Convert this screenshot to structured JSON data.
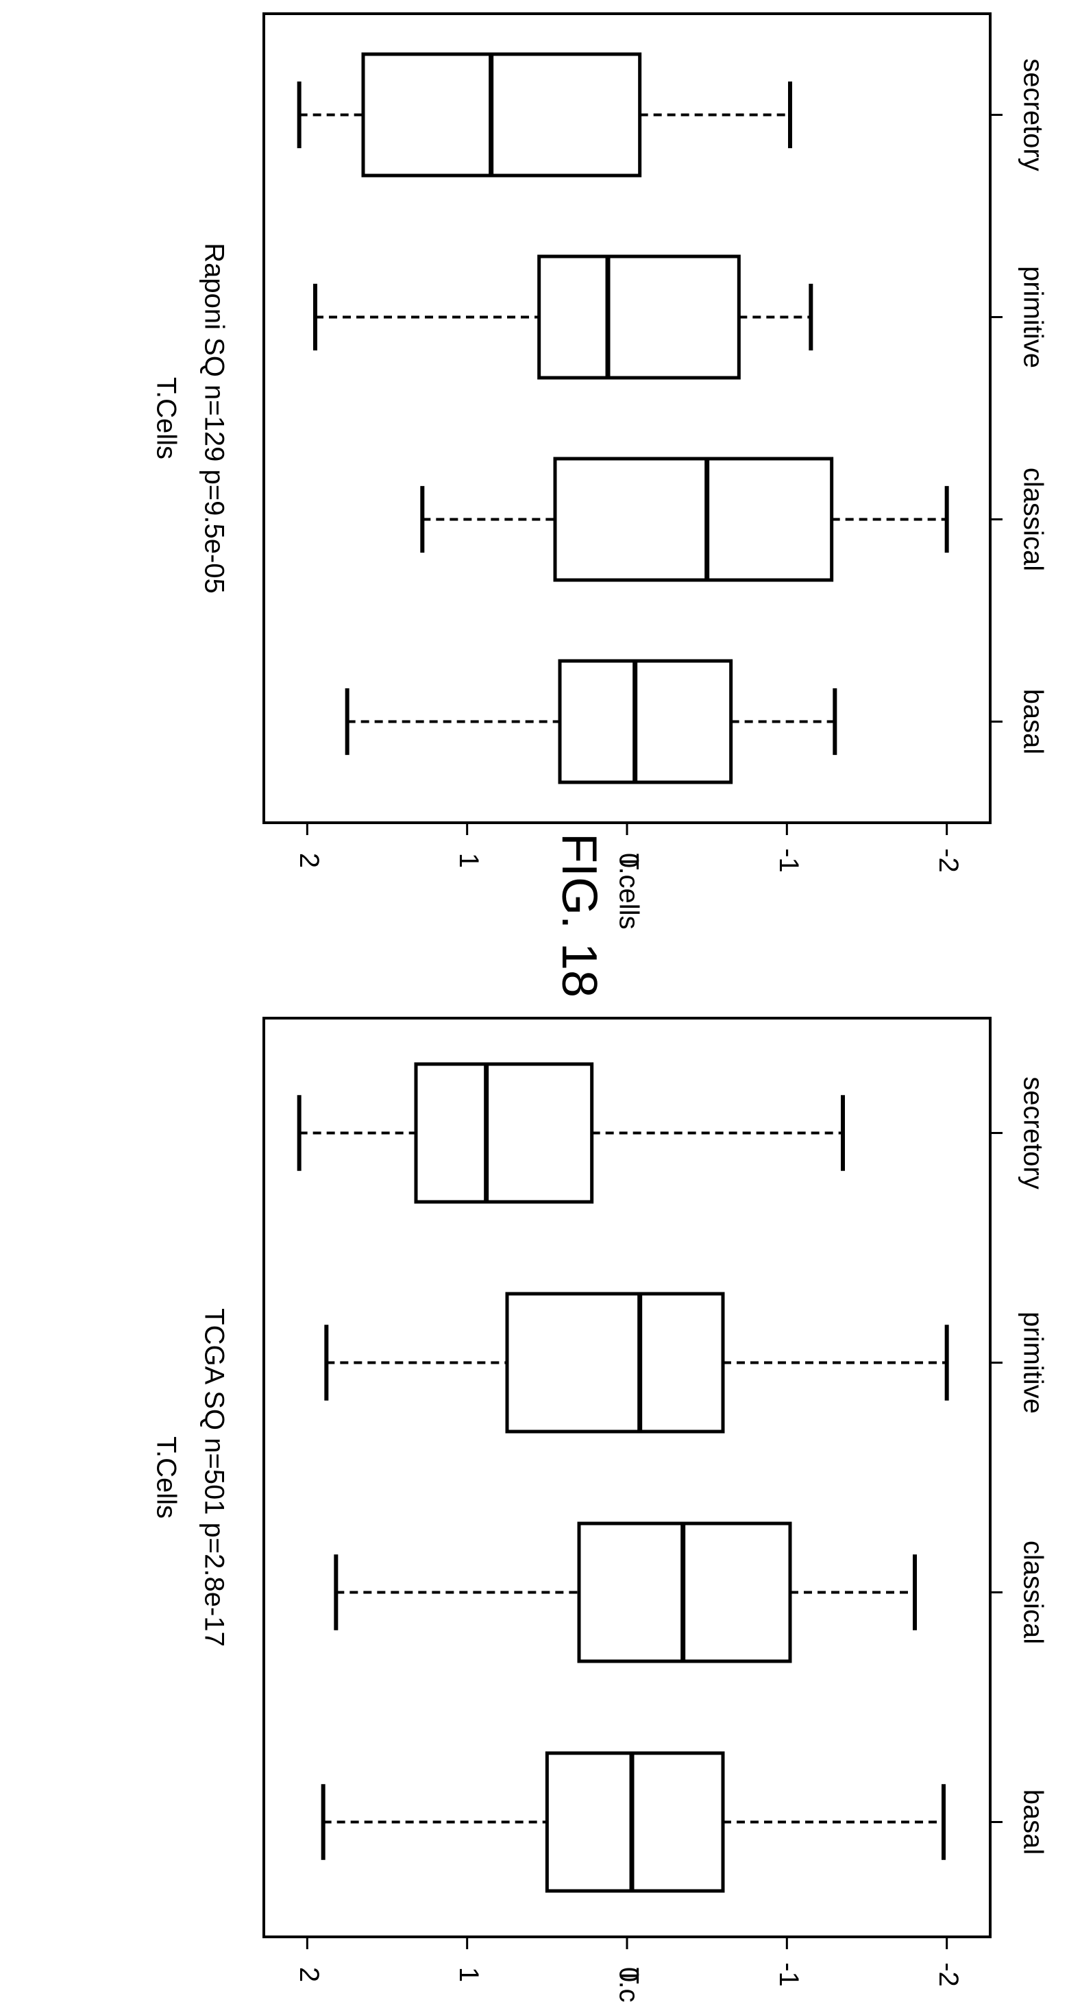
{
  "figure": {
    "label": "FIG. 18"
  },
  "chart_data": [
    {
      "type": "box",
      "title": "T.Cells",
      "subtitle": "TCGA SQ n=501 p=2.8e-17",
      "ylabel": "T.cells",
      "categories": [
        "basal",
        "classical",
        "primitive",
        "secretory"
      ],
      "ylim": [
        -2.1,
        2.1
      ],
      "yticks": [
        2,
        1,
        0,
        -1,
        -2
      ],
      "ytick_labels": [
        "2",
        "1",
        "0",
        "-1",
        "-2"
      ],
      "boxes": [
        {
          "category": "basal",
          "whisker_low": -1.98,
          "q1": -0.6,
          "median": -0.03,
          "q3": 0.5,
          "whisker_high": 1.9
        },
        {
          "category": "classical",
          "whisker_low": -1.8,
          "q1": -1.02,
          "median": -0.35,
          "q3": 0.3,
          "whisker_high": 1.82
        },
        {
          "category": "primitive",
          "whisker_low": -2.0,
          "q1": -0.6,
          "median": -0.08,
          "q3": 0.75,
          "whisker_high": 1.88
        },
        {
          "category": "secretory",
          "whisker_low": -1.35,
          "q1": 0.22,
          "median": 0.88,
          "q3": 1.32,
          "whisker_high": 2.05
        }
      ]
    },
    {
      "type": "box",
      "title": "T.Cells",
      "subtitle": "Raponi SQ n=129 p=9.5e-05",
      "ylabel": "T.cells",
      "categories": [
        "basal",
        "classical",
        "primitive",
        "secretory"
      ],
      "ylim": [
        -2.1,
        2.1
      ],
      "yticks": [
        2,
        1,
        0,
        -1,
        -2
      ],
      "ytick_labels": [
        "2",
        "1",
        "0",
        "-1",
        "-2"
      ],
      "boxes": [
        {
          "category": "basal",
          "whisker_low": -1.3,
          "q1": -0.65,
          "median": -0.05,
          "q3": 0.42,
          "whisker_high": 1.75
        },
        {
          "category": "classical",
          "whisker_low": -2.0,
          "q1": -1.28,
          "median": -0.5,
          "q3": 0.45,
          "whisker_high": 1.28
        },
        {
          "category": "primitive",
          "whisker_low": -1.15,
          "q1": -0.7,
          "median": 0.12,
          "q3": 0.55,
          "whisker_high": 1.95
        },
        {
          "category": "secretory",
          "whisker_low": -1.02,
          "q1": -0.08,
          "median": 0.85,
          "q3": 1.65,
          "whisker_high": 2.05
        }
      ]
    }
  ]
}
